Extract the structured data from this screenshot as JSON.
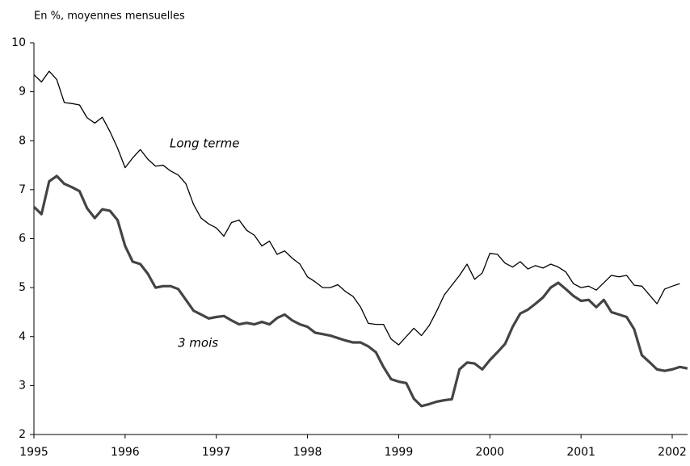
{
  "chart_data": {
    "type": "line",
    "subtitle": "En %, moyennes mensuelles",
    "annotations": [
      "Long terme",
      "3 mois"
    ],
    "x": [
      1995,
      1995.083,
      1995.167,
      1995.25,
      1995.333,
      1995.417,
      1995.5,
      1995.583,
      1995.667,
      1995.75,
      1995.833,
      1995.917,
      1996,
      1996.083,
      1996.167,
      1996.25,
      1996.333,
      1996.417,
      1996.5,
      1996.583,
      1996.667,
      1996.75,
      1996.833,
      1996.917,
      1997,
      1997.083,
      1997.167,
      1997.25,
      1997.333,
      1997.417,
      1997.5,
      1997.583,
      1997.667,
      1997.75,
      1997.833,
      1997.917,
      1998,
      1998.083,
      1998.167,
      1998.25,
      1998.333,
      1998.417,
      1998.5,
      1998.583,
      1998.667,
      1998.75,
      1998.833,
      1998.917,
      1999,
      1999.083,
      1999.167,
      1999.25,
      1999.333,
      1999.417,
      1999.5,
      1999.583,
      1999.667,
      1999.75,
      1999.833,
      1999.917,
      2000,
      2000.083,
      2000.167,
      2000.25,
      2000.333,
      2000.417,
      2000.5,
      2000.583,
      2000.667,
      2000.75,
      2000.833,
      2000.917,
      2001,
      2001.083,
      2001.167,
      2001.25,
      2001.333,
      2001.417,
      2001.5,
      2001.583,
      2001.667,
      2001.75,
      2001.833,
      2001.917,
      2002,
      2002.083,
      2002.167
    ],
    "series": [
      {
        "name": "Long terme",
        "color": "#000000",
        "width": 1.3,
        "values": [
          9.35,
          9.2,
          9.42,
          9.25,
          8.78,
          8.76,
          8.73,
          8.47,
          8.36,
          8.48,
          8.19,
          7.85,
          7.45,
          7.65,
          7.82,
          7.62,
          7.48,
          7.5,
          7.38,
          7.3,
          7.12,
          6.7,
          6.42,
          6.3,
          6.22,
          6.05,
          6.33,
          6.38,
          6.17,
          6.07,
          5.85,
          5.95,
          5.68,
          5.75,
          5.6,
          5.48,
          5.22,
          5.12,
          5.0,
          5.0,
          5.06,
          4.92,
          4.82,
          4.6,
          4.27,
          4.25,
          4.25,
          3.95,
          3.83,
          4.0,
          4.17,
          4.02,
          4.22,
          4.52,
          4.85,
          5.05,
          5.25,
          5.48,
          5.17,
          5.3,
          5.7,
          5.68,
          5.5,
          5.42,
          5.53,
          5.38,
          5.45,
          5.4,
          5.48,
          5.42,
          5.32,
          5.08,
          5.0,
          5.03,
          4.95,
          5.1,
          5.25,
          5.22,
          5.25,
          5.05,
          5.03,
          4.85,
          4.67,
          4.97,
          5.03,
          5.08,
          null
        ]
      },
      {
        "name": "3 mois",
        "color": "#444444",
        "width": 3.2,
        "values": [
          6.65,
          6.5,
          7.17,
          7.28,
          7.12,
          7.05,
          6.97,
          6.62,
          6.42,
          6.6,
          6.57,
          6.38,
          5.85,
          5.53,
          5.48,
          5.28,
          5.0,
          5.03,
          5.03,
          4.97,
          4.75,
          4.53,
          4.45,
          4.37,
          4.4,
          4.42,
          4.33,
          4.25,
          4.28,
          4.25,
          4.3,
          4.25,
          4.38,
          4.45,
          4.33,
          4.25,
          4.2,
          4.08,
          4.05,
          4.02,
          3.97,
          3.92,
          3.88,
          3.88,
          3.8,
          3.68,
          3.38,
          3.13,
          3.08,
          3.05,
          2.73,
          2.58,
          2.62,
          2.67,
          2.7,
          2.72,
          3.33,
          3.47,
          3.45,
          3.33,
          3.52,
          3.68,
          3.85,
          4.2,
          4.47,
          4.55,
          4.67,
          4.8,
          5.0,
          5.1,
          4.97,
          4.83,
          4.73,
          4.75,
          4.6,
          4.75,
          4.5,
          4.45,
          4.4,
          4.15,
          3.62,
          3.48,
          3.33,
          3.3,
          3.33,
          3.38,
          3.35
        ]
      }
    ],
    "xlim": [
      1995,
      2002.17
    ],
    "xticks": [
      1995,
      1996,
      1997,
      1998,
      1999,
      2000,
      2001,
      2002
    ],
    "ylim": [
      2,
      10
    ],
    "yticks": [
      2,
      3,
      4,
      5,
      6,
      7,
      8,
      9,
      10
    ]
  }
}
